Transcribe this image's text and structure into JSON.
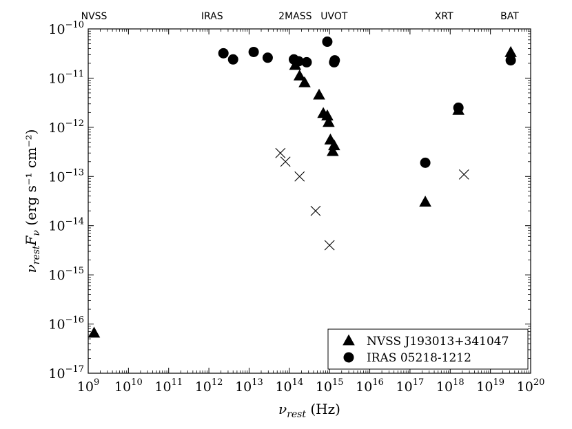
{
  "chart_data": {
    "type": "scatter",
    "title": "",
    "xlabel": "ν_rest (Hz)",
    "ylabel": "ν_rest F_ν (erg s⁻¹ cm⁻²)",
    "x_scale": "log",
    "y_scale": "log",
    "xlim": [
      1000000000.0,
      1e+20
    ],
    "ylim": [
      1e-17,
      1e-10
    ],
    "x_ticks": [
      {
        "value": 1000000000.0,
        "base": "10",
        "exp": "9"
      },
      {
        "value": 10000000000.0,
        "base": "10",
        "exp": "10"
      },
      {
        "value": 100000000000.0,
        "base": "10",
        "exp": "11"
      },
      {
        "value": 1000000000000.0,
        "base": "10",
        "exp": "12"
      },
      {
        "value": 10000000000000.0,
        "base": "10",
        "exp": "13"
      },
      {
        "value": 100000000000000.0,
        "base": "10",
        "exp": "14"
      },
      {
        "value": 1000000000000000.0,
        "base": "10",
        "exp": "15"
      },
      {
        "value": 1e+16,
        "base": "10",
        "exp": "16"
      },
      {
        "value": 1e+17,
        "base": "10",
        "exp": "17"
      },
      {
        "value": 1e+18,
        "base": "10",
        "exp": "18"
      },
      {
        "value": 1e+19,
        "base": "10",
        "exp": "19"
      },
      {
        "value": 1e+20,
        "base": "10",
        "exp": "20"
      }
    ],
    "y_ticks": [
      {
        "value": 1e-10,
        "base": "10",
        "exp": "−10"
      },
      {
        "value": 1e-11,
        "base": "10",
        "exp": "−11"
      },
      {
        "value": 1e-12,
        "base": "10",
        "exp": "−12"
      },
      {
        "value": 1e-13,
        "base": "10",
        "exp": "−13"
      },
      {
        "value": 1e-14,
        "base": "10",
        "exp": "−14"
      },
      {
        "value": 1e-15,
        "base": "10",
        "exp": "−15"
      },
      {
        "value": 1e-16,
        "base": "10",
        "exp": "−16"
      },
      {
        "value": 1e-17,
        "base": "10",
        "exp": "−17"
      }
    ],
    "band_labels": [
      {
        "label": "NVSS",
        "x": 1400000000.0
      },
      {
        "label": "IRAS",
        "x": 1200000000000.0
      },
      {
        "label": "2MASS",
        "x": 140000000000000.0
      },
      {
        "label": "UVOT",
        "x": 1300000000000000.0
      },
      {
        "label": "XRT",
        "x": 7e+17
      },
      {
        "label": "BAT",
        "x": 3e+19
      }
    ],
    "legend": {
      "position": "lower-right",
      "entries": [
        {
          "name": "NVSS J193013+341047",
          "marker": "triangle"
        },
        {
          "name": "IRAS 05218-1212",
          "marker": "circle"
        }
      ]
    },
    "color": "#000000",
    "series": [
      {
        "name": "NVSS J193013+341047",
        "marker": "triangle",
        "points": [
          {
            "x": 1400000000.0,
            "y": 6.5e-17
          },
          {
            "x": 140000000000000.0,
            "y": 1.8e-11
          },
          {
            "x": 180000000000000.0,
            "y": 1.1e-11
          },
          {
            "x": 240000000000000.0,
            "y": 8e-12
          },
          {
            "x": 550000000000000.0,
            "y": 4.5e-12
          },
          {
            "x": 700000000000000.0,
            "y": 1.9e-12
          },
          {
            "x": 880000000000000.0,
            "y": 1.7e-12
          },
          {
            "x": 950000000000000.0,
            "y": 1.25e-12
          },
          {
            "x": 1050000000000000.0,
            "y": 5.5e-13
          },
          {
            "x": 1200000000000000.0,
            "y": 3.2e-13
          },
          {
            "x": 1300000000000000.0,
            "y": 4.2e-13
          },
          {
            "x": 2.4e+17,
            "y": 3e-14
          },
          {
            "x": 1.6e+18,
            "y": 2.2e-12
          },
          {
            "x": 3.2e+19,
            "y": 3.3e-11
          }
        ]
      },
      {
        "name": "IRAS 05218-1212",
        "marker": "circle",
        "points": [
          {
            "x": 2300000000000.0,
            "y": 3.2e-11
          },
          {
            "x": 4000000000000.0,
            "y": 2.4e-11
          },
          {
            "x": 13000000000000.0,
            "y": 3.4e-11
          },
          {
            "x": 29000000000000.0,
            "y": 2.6e-11
          },
          {
            "x": 130000000000000.0,
            "y": 2.4e-11
          },
          {
            "x": 170000000000000.0,
            "y": 2.2e-11
          },
          {
            "x": 270000000000000.0,
            "y": 2.1e-11
          },
          {
            "x": 880000000000000.0,
            "y": 5.5e-11
          },
          {
            "x": 1300000000000000.0,
            "y": 2.1e-11
          },
          {
            "x": 1350000000000000.0,
            "y": 2.3e-11
          },
          {
            "x": 2.4e+17,
            "y": 1.9e-13
          },
          {
            "x": 1.6e+18,
            "y": 2.5e-12
          },
          {
            "x": 3.2e+19,
            "y": 2.3e-11
          }
        ]
      },
      {
        "name": "",
        "marker": "x",
        "points": [
          {
            "x": 60000000000000.0,
            "y": 3e-13
          },
          {
            "x": 80000000000000.0,
            "y": 2e-13
          },
          {
            "x": 180000000000000.0,
            "y": 1e-13
          },
          {
            "x": 450000000000000.0,
            "y": 2e-14
          },
          {
            "x": 1000000000000000.0,
            "y": 4e-15
          },
          {
            "x": 2.2e+18,
            "y": 1.1e-13
          }
        ]
      }
    ]
  }
}
